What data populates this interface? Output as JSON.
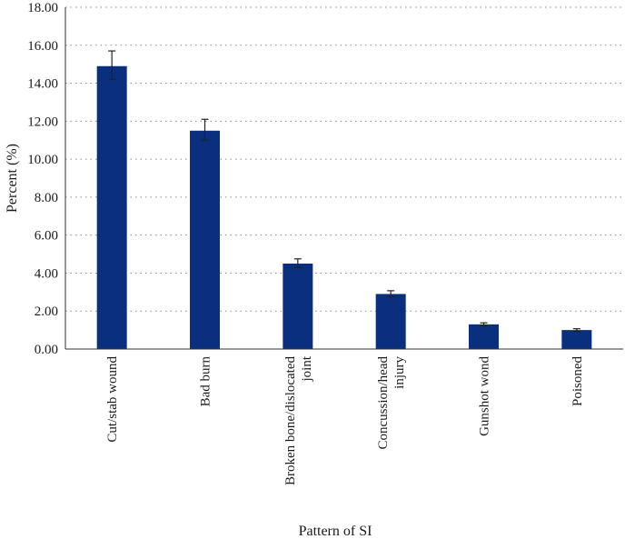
{
  "chart_data": {
    "type": "bar",
    "categories": [
      [
        "Cut/stab wound"
      ],
      [
        "Bad burn"
      ],
      [
        "Broken bone/dislocated",
        "joint"
      ],
      [
        "Concussion/head",
        "injury"
      ],
      [
        "Gunshot wond"
      ],
      [
        "Poisoned"
      ]
    ],
    "values": [
      14.9,
      11.5,
      4.5,
      2.9,
      1.3,
      1.0
    ],
    "error_low": [
      14.2,
      11.0,
      4.3,
      2.75,
      1.22,
      0.93
    ],
    "error_high": [
      15.7,
      12.1,
      4.75,
      3.07,
      1.38,
      1.07
    ],
    "xlabel": "Pattern of SI",
    "ylabel": "Percent (%)",
    "ylim": [
      0,
      18
    ],
    "yticks": [
      "0.00",
      "2.00",
      "4.00",
      "6.00",
      "8.00",
      "10.00",
      "12.00",
      "14.00",
      "16.00",
      "18.00"
    ],
    "grid": "horizontal-dotted",
    "legend": "none",
    "bar_color": "#0b2f7f"
  }
}
